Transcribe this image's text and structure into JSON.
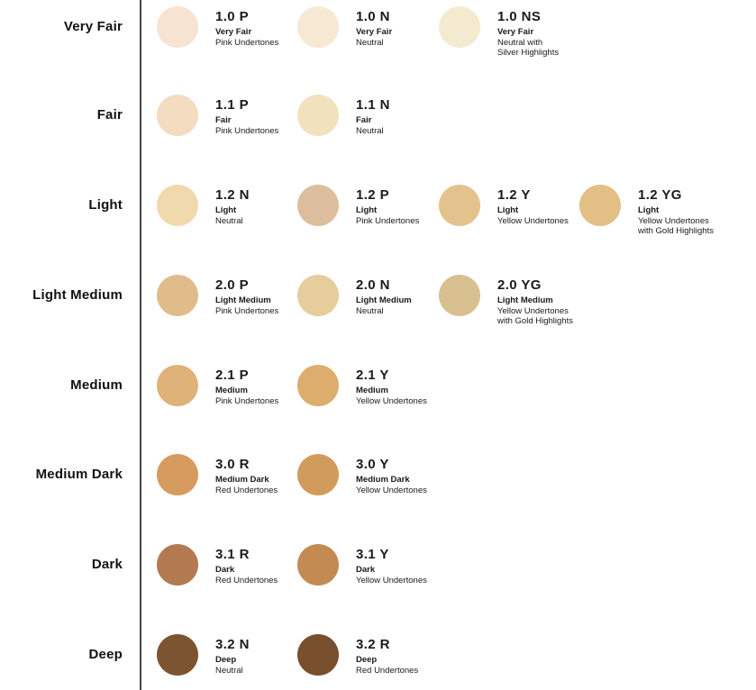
{
  "colors": {
    "background": "#ffffff",
    "divider": "#444444",
    "text": "#111111"
  },
  "chart": {
    "rows": [
      {
        "label": "Very Fair",
        "shades": [
          {
            "code": "1.0 P",
            "name": "Very Fair",
            "undertone": "Pink Undertones",
            "color": "#f7e3d2"
          },
          {
            "code": "1.0 N",
            "name": "Very Fair",
            "undertone": "Neutral",
            "color": "#f6e8d3"
          },
          {
            "code": "1.0 NS",
            "name": "Very Fair",
            "undertone": "Neutral with\nSilver Highlights",
            "color": "#f3ead0"
          }
        ]
      },
      {
        "label": "Fair",
        "shades": [
          {
            "code": "1.1 P",
            "name": "Fair",
            "undertone": "Pink Undertones",
            "color": "#f4dcc0"
          },
          {
            "code": "1.1 N",
            "name": "Fair",
            "undertone": "Neutral",
            "color": "#f2e1bd"
          }
        ]
      },
      {
        "label": "Light",
        "shades": [
          {
            "code": "1.2 N",
            "name": "Light",
            "undertone": "Neutral",
            "color": "#f0d9ad"
          },
          {
            "code": "1.2 P",
            "name": "Light",
            "undertone": "Pink Undertones",
            "color": "#dcbe9e"
          },
          {
            "code": "1.2 Y",
            "name": "Light",
            "undertone": "Yellow Undertones",
            "color": "#e4c28d"
          },
          {
            "code": "1.2 YG",
            "name": "Light",
            "undertone": "Yellow Undertones\nwith Gold Highlights",
            "color": "#e2bf85"
          }
        ]
      },
      {
        "label": "Light Medium",
        "shades": [
          {
            "code": "2.0 P",
            "name": "Light Medium",
            "undertone": "Pink Undertones",
            "color": "#e0bc8b"
          },
          {
            "code": "2.0 N",
            "name": "Light Medium",
            "undertone": "Neutral",
            "color": "#e6cd9c"
          },
          {
            "code": "2.0 YG",
            "name": "Light Medium",
            "undertone": "Yellow Undertones\nwith Gold Highlights",
            "color": "#d9c091"
          }
        ]
      },
      {
        "label": "Medium",
        "shades": [
          {
            "code": "2.1 P",
            "name": "Medium",
            "undertone": "Pink Undertones",
            "color": "#dfb279"
          },
          {
            "code": "2.1 Y",
            "name": "Medium",
            "undertone": "Yellow Undertones",
            "color": "#dcad6d"
          }
        ]
      },
      {
        "label": "Medium Dark",
        "shades": [
          {
            "code": "3.0 R",
            "name": "Medium Dark",
            "undertone": "Red Undertones",
            "color": "#d69b5e"
          },
          {
            "code": "3.0 Y",
            "name": "Medium Dark",
            "undertone": "Yellow Undertones",
            "color": "#d19c5b"
          }
        ]
      },
      {
        "label": "Dark",
        "shades": [
          {
            "code": "3.1 R",
            "name": "Dark",
            "undertone": "Red Undertones",
            "color": "#b37950"
          },
          {
            "code": "3.1 Y",
            "name": "Dark",
            "undertone": "Yellow Undertones",
            "color": "#c38a51"
          }
        ]
      },
      {
        "label": "Deep",
        "shades": [
          {
            "code": "3.2 N",
            "name": "Deep",
            "undertone": "Neutral",
            "color": "#7d5431"
          },
          {
            "code": "3.2 R",
            "name": "Deep",
            "undertone": "Red Undertones",
            "color": "#774f2c"
          }
        ]
      }
    ]
  }
}
